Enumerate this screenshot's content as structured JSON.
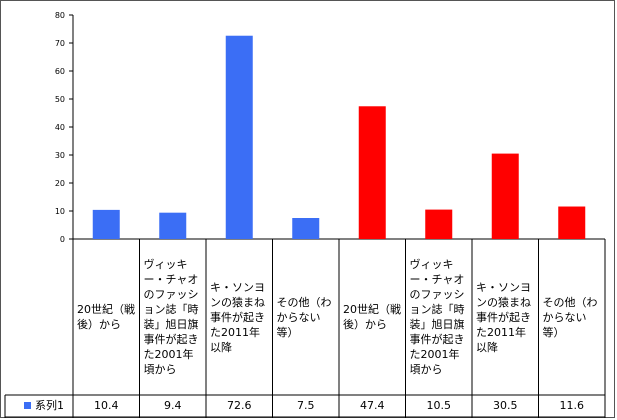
{
  "chart_data": {
    "type": "bar",
    "categories": [
      "20世紀（戦後）から",
      "ヴィッキー・チャオのファッション誌「時装」旭日旗事件が起きた2001年頃から",
      "キ・ソンヨンの猿まね事件が起きた2011年以降",
      "その他（わからない等）",
      "20世紀（戦後）から",
      "ヴィッキー・チャオのファッション誌「時装」旭日旗事件が起きた2001年頃から",
      "キ・ソンヨンの猿まね事件が起きた2011年以降",
      "その他（わからない等）"
    ],
    "series": [
      {
        "name": "系列1",
        "values": [
          10.4,
          9.4,
          72.6,
          7.5,
          47.4,
          10.5,
          30.5,
          11.6
        ]
      }
    ],
    "bar_colors": [
      "#3b6ef5",
      "#3b6ef5",
      "#3b6ef5",
      "#3b6ef5",
      "#ff0000",
      "#ff0000",
      "#ff0000",
      "#ff0000"
    ],
    "ylim": [
      0,
      80
    ],
    "yticks": [
      0,
      10,
      20,
      30,
      40,
      50,
      60,
      70,
      80
    ],
    "grid": false,
    "data_table": true,
    "legend_in_table": true
  }
}
